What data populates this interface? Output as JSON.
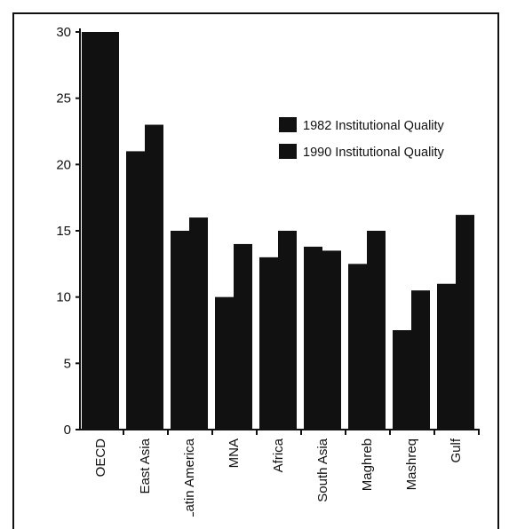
{
  "chart_data": {
    "type": "bar",
    "categories": [
      "OECD",
      "East Asia",
      "Latin America",
      "MNA",
      "Africa",
      "South Asia",
      "Maghreb",
      "Mashreq",
      "Gulf"
    ],
    "series": [
      {
        "name": "1982 Institutional Quality",
        "values": [
          30,
          21,
          15,
          10,
          13,
          13.8,
          12.5,
          7.5,
          11
        ]
      },
      {
        "name": "1990 Institutional Quality",
        "values": [
          30,
          23,
          16,
          14,
          15,
          13.5,
          15,
          10.5,
          16.2
        ]
      }
    ],
    "colors": [
      "#111111",
      "#111111"
    ],
    "ylim": [
      0,
      30
    ],
    "yticks": [
      0,
      5,
      10,
      15,
      20,
      25,
      30
    ],
    "legend_position": "right",
    "grid": false
  }
}
